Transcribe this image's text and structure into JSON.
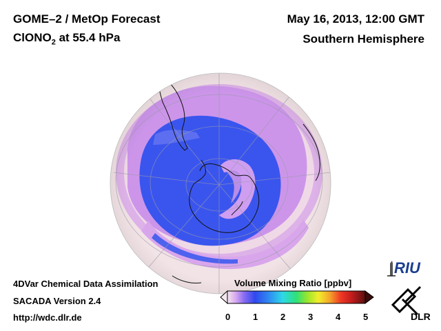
{
  "header": {
    "title_line1": "GOME–2 / MetOp Forecast",
    "species_main": "ClONO",
    "species_sub": "2",
    "species_rest": " at 55.4 hPa",
    "datetime": "May 16, 2013, 12:00 GMT",
    "region": "Southern Hemisphere"
  },
  "footer": {
    "line1": "4DVar Chemical Data Assimilation",
    "line2": "SACADA Version 2.4",
    "line3": "http://wdc.dlr.de"
  },
  "colorbar": {
    "title": "Volume Mixing Ratio [ppbv]",
    "ticks": [
      "0",
      "1",
      "2",
      "3",
      "4",
      "5"
    ],
    "min": 0,
    "max": 5
  },
  "logos": {
    "riu_text": "RIU",
    "dlr_text": "DLR"
  },
  "colors": {
    "background_low": "#f2e3e6",
    "band_mid": "#c78be8",
    "vortex_high": "#2f48ee"
  },
  "icons": [
    "riu-logo-icon",
    "dlr-logo-icon",
    "globe-map"
  ]
}
